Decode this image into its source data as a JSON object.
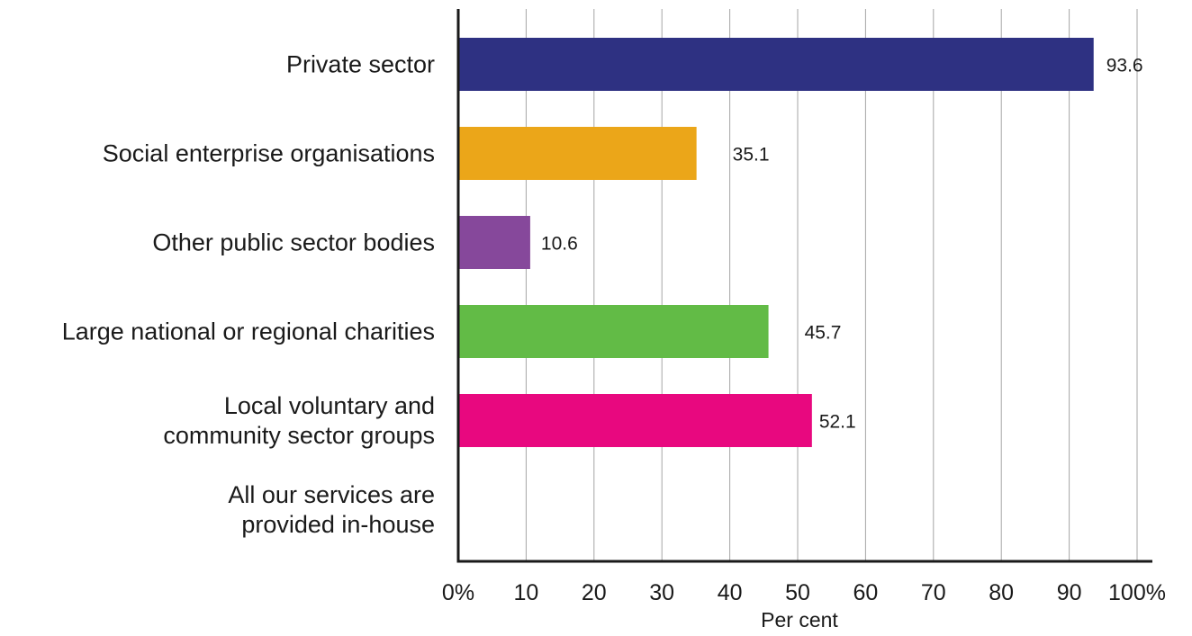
{
  "chart_data": {
    "type": "bar",
    "orientation": "horizontal",
    "title": "",
    "xlabel": "Per cent",
    "ylabel": "",
    "xlim": [
      0,
      100
    ],
    "grid": true,
    "x_ticks": [
      0,
      10,
      20,
      30,
      40,
      50,
      60,
      70,
      80,
      90,
      100
    ],
    "x_tick_labels": [
      "0%",
      "10",
      "20",
      "30",
      "40",
      "50",
      "60",
      "70",
      "80",
      "90",
      "100%"
    ],
    "categories": [
      [
        "Private sector"
      ],
      [
        "Social enterprise organisations"
      ],
      [
        "Other public sector bodies"
      ],
      [
        "Large national or regional charities"
      ],
      [
        "Local voluntary and",
        "community sector groups"
      ],
      [
        "All our services are",
        "provided in-house"
      ]
    ],
    "values": [
      93.6,
      35.1,
      10.6,
      45.7,
      52.1,
      null
    ],
    "value_labels": [
      "93.6",
      "35.1",
      "10.6",
      "45.7",
      "52.1",
      ""
    ],
    "colors": [
      "#2e3182",
      "#eba619",
      "#86489b",
      "#62bb46",
      "#e8087f",
      "#ffffff"
    ]
  }
}
